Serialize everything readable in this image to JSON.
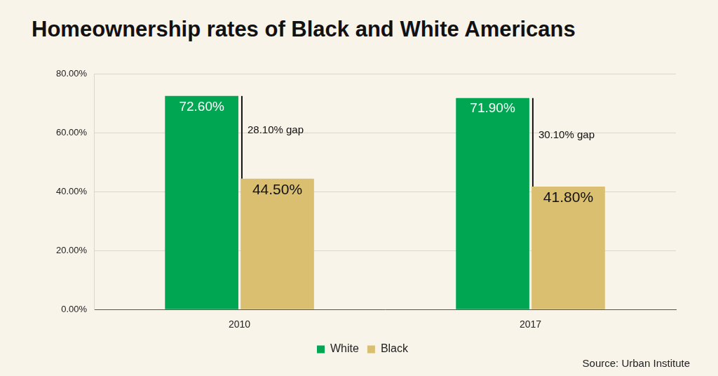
{
  "chart_data": {
    "type": "bar",
    "title": "Homeownership rates of Black and White Americans",
    "categories": [
      "2010",
      "2017"
    ],
    "series": [
      {
        "name": "White",
        "color": "#00a651",
        "values": [
          72.6,
          71.9
        ],
        "value_labels": [
          "72.60%",
          "71.90%"
        ]
      },
      {
        "name": "Black",
        "color": "#d9bf6f",
        "values": [
          44.5,
          41.8
        ],
        "value_labels": [
          "44.50%",
          "41.80%"
        ]
      }
    ],
    "ylim": [
      0,
      80
    ],
    "yticks": [
      {
        "value": 0,
        "label": "0.00%"
      },
      {
        "value": 20,
        "label": "20.00%"
      },
      {
        "value": 40,
        "label": "40.00%"
      },
      {
        "value": 60,
        "label": "60.00%"
      },
      {
        "value": 80,
        "label": "80.00%"
      }
    ],
    "grid": true,
    "legend": "bottom",
    "data_labels": true,
    "annotations": [
      {
        "category": "2010",
        "label": "28.10% gap",
        "gap": 28.1
      },
      {
        "category": "2017",
        "label": "30.10% gap",
        "gap": 30.1
      }
    ],
    "source": "Source: Urban Institute"
  }
}
